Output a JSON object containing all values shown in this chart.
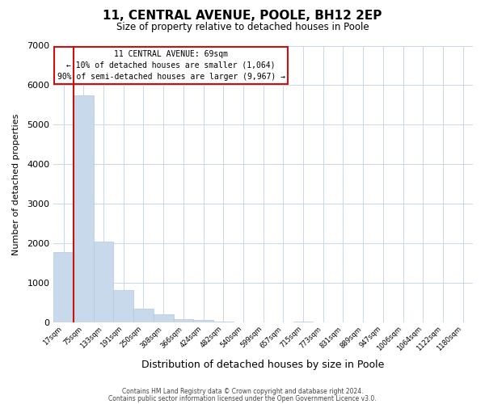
{
  "title": "11, CENTRAL AVENUE, POOLE, BH12 2EP",
  "subtitle": "Size of property relative to detached houses in Poole",
  "xlabel": "Distribution of detached houses by size in Poole",
  "ylabel": "Number of detached properties",
  "bar_color": "#c8d9ec",
  "bar_edge_color": "#b0c8e0",
  "grid_color": "#c8d8ea",
  "background_color": "#ffffff",
  "annotation_box_color": "#ffffff",
  "annotation_border_color": "#cc1111",
  "vline_color": "#cc1111",
  "categories": [
    "17sqm",
    "75sqm",
    "133sqm",
    "191sqm",
    "250sqm",
    "308sqm",
    "366sqm",
    "424sqm",
    "482sqm",
    "540sqm",
    "599sqm",
    "657sqm",
    "715sqm",
    "773sqm",
    "831sqm",
    "889sqm",
    "947sqm",
    "1006sqm",
    "1064sqm",
    "1122sqm",
    "1180sqm"
  ],
  "values": [
    1780,
    5750,
    2050,
    820,
    360,
    220,
    100,
    70,
    30,
    0,
    0,
    0,
    35,
    0,
    0,
    0,
    0,
    0,
    0,
    0,
    0
  ],
  "ylim": [
    0,
    7000
  ],
  "vline_x_index": 1,
  "annotation_line1": "11 CENTRAL AVENUE: 69sqm",
  "annotation_line2": "← 10% of detached houses are smaller (1,064)",
  "annotation_line3": "90% of semi-detached houses are larger (9,967) →",
  "footer1": "Contains HM Land Registry data © Crown copyright and database right 2024.",
  "footer2": "Contains public sector information licensed under the Open Government Licence v3.0."
}
